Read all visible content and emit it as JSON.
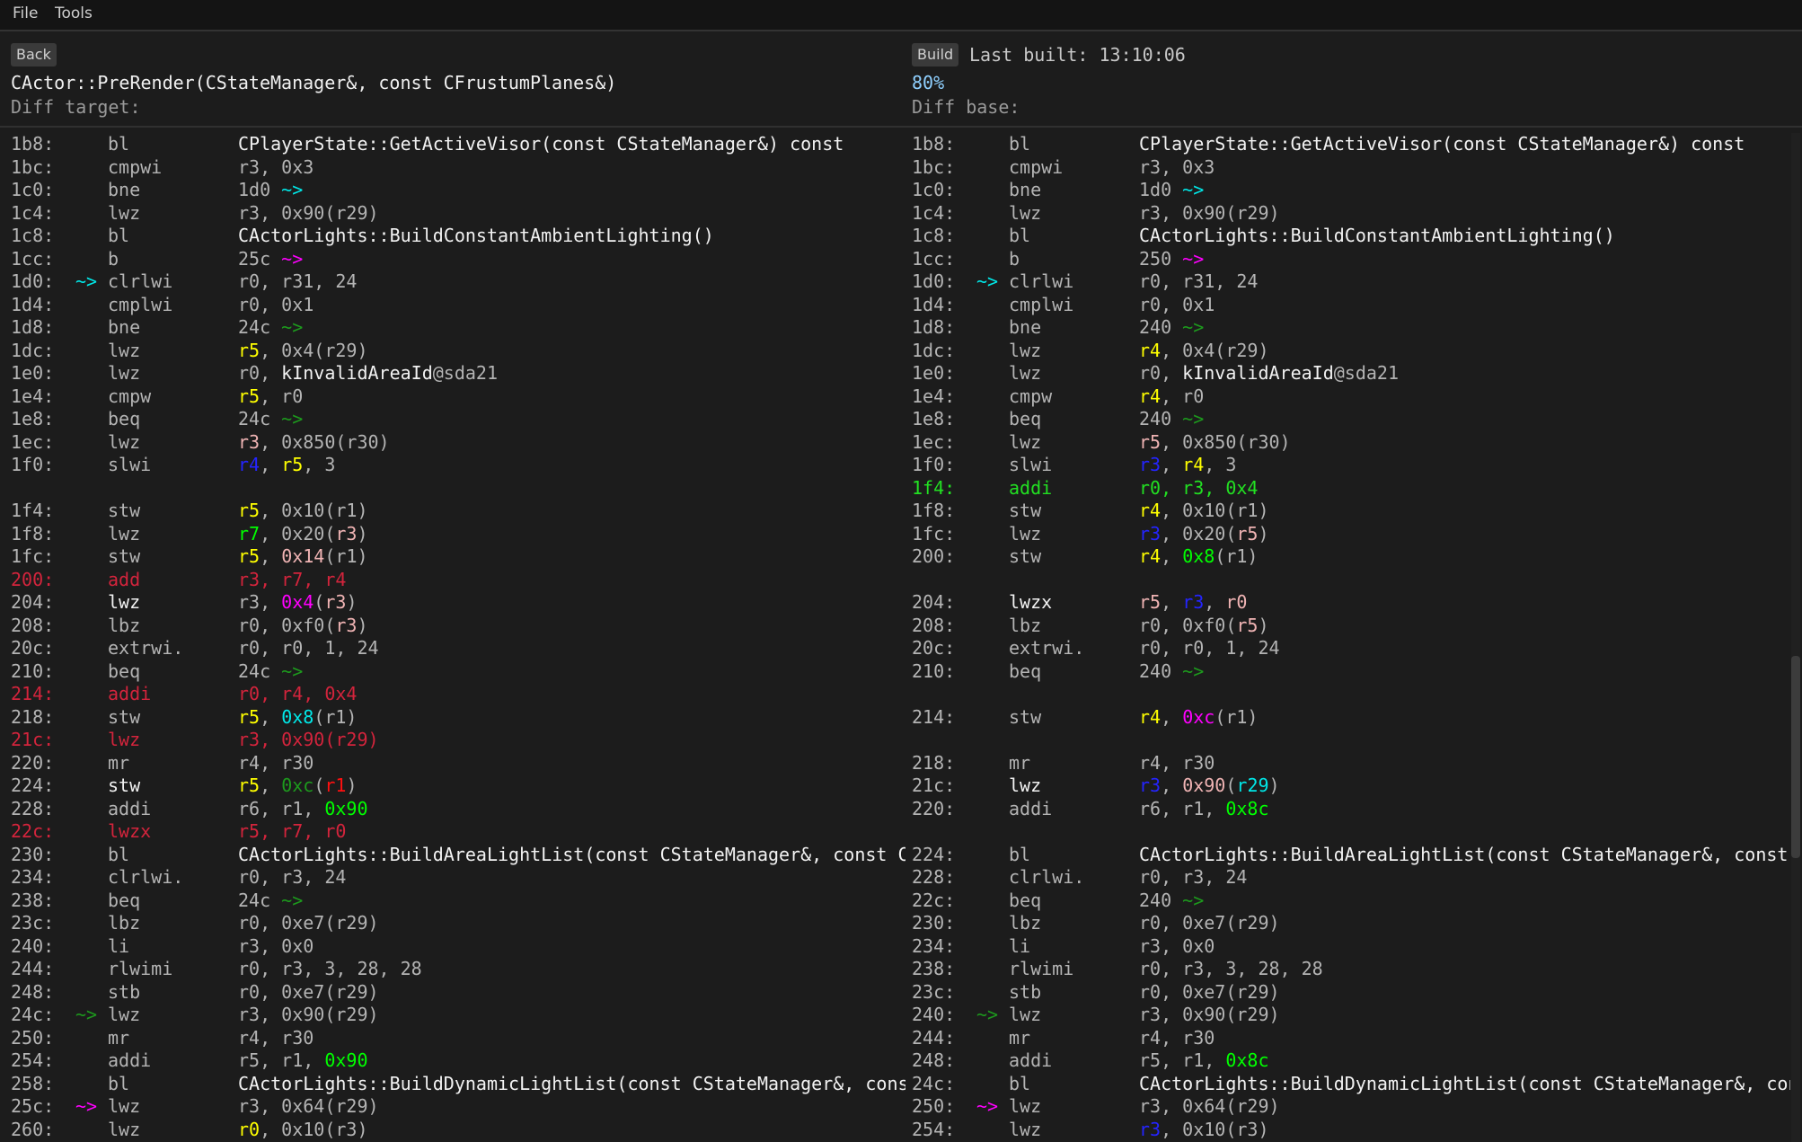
{
  "menu": {
    "file": "File",
    "tools": "Tools"
  },
  "toolbar": {
    "back_label": "Back",
    "build_label": "Build",
    "last_built": "Last built: 13:10:06"
  },
  "left": {
    "function_name": "CActor::PreRender(CStateManager&, const CFrustumPlanes&)",
    "label": "Diff target:"
  },
  "right": {
    "match_percent": "80%",
    "label": "Diff base:"
  },
  "colors": {
    "d": "#b4b4b4",
    "w": "#f2f2f2",
    "y": "#ffff00",
    "g": "#00ff00",
    "dg": "#1d9a1d",
    "c": "#00e8e8",
    "m": "#ff00ff",
    "b": "#2424ff",
    "p": "#f0b4b4",
    "r": "#d3243c",
    "R": "#ff1010",
    "ins": "#22e022",
    "background": "#1c1c1c"
  },
  "diff_left": [
    {
      "a": "1b8:",
      "m": "bl",
      "ops": [
        [
          "CPlayerState::GetActiveVisor(const CStateManager&) const",
          "w"
        ]
      ]
    },
    {
      "a": "1bc:",
      "m": "cmpwi",
      "ops": [
        "r3, 0x3"
      ]
    },
    {
      "a": "1c0:",
      "m": "bne",
      "ops": [
        "1d0 ",
        [
          "~>",
          "c"
        ]
      ]
    },
    {
      "a": "1c4:",
      "m": "lwz",
      "ops": [
        "r3, 0x90(r29)"
      ]
    },
    {
      "a": "1c8:",
      "m": "bl",
      "ops": [
        [
          "CActorLights::BuildConstantAmbientLighting()",
          "w"
        ]
      ]
    },
    {
      "a": "1cc:",
      "m": "b",
      "ops": [
        "25c ",
        [
          "~>",
          "m"
        ]
      ]
    },
    {
      "a": "1d0:",
      "ar": [
        "~>",
        "c"
      ],
      "m": "clrlwi",
      "ops": [
        "r0, r31, 24"
      ]
    },
    {
      "a": "1d4:",
      "m": "cmplwi",
      "ops": [
        "r0, 0x1"
      ]
    },
    {
      "a": "1d8:",
      "m": "bne",
      "ops": [
        "24c ",
        [
          "~>",
          "dg"
        ]
      ]
    },
    {
      "a": "1dc:",
      "m": "lwz",
      "ops": [
        [
          "r5",
          "y"
        ],
        ", 0x4(r29)"
      ]
    },
    {
      "a": "1e0:",
      "m": "lwz",
      "ops": [
        "r0, ",
        [
          "kInvalidAreaId",
          "w"
        ],
        "@sda21"
      ]
    },
    {
      "a": "1e4:",
      "m": "cmpw",
      "ops": [
        [
          "r5",
          "y"
        ],
        ", r0"
      ]
    },
    {
      "a": "1e8:",
      "m": "beq",
      "ops": [
        "24c ",
        [
          "~>",
          "dg"
        ]
      ]
    },
    {
      "a": "1ec:",
      "m": "lwz",
      "ops": [
        [
          "r3",
          "p"
        ],
        ", 0x850(r30)"
      ]
    },
    {
      "a": "1f0:",
      "m": "slwi",
      "ops": [
        [
          "r4",
          "b"
        ],
        ", ",
        [
          "r5",
          "y"
        ],
        ", 3"
      ]
    },
    {
      "blank": true
    },
    {
      "a": "1f4:",
      "m": "stw",
      "ops": [
        [
          "r5",
          "y"
        ],
        ", 0x10(r1)"
      ]
    },
    {
      "a": "1f8:",
      "m": "lwz",
      "ops": [
        [
          "r7",
          "g"
        ],
        ", 0x20(",
        [
          "r3",
          "p"
        ],
        ")"
      ]
    },
    {
      "a": "1fc:",
      "m": "stw",
      "ops": [
        [
          "r5",
          "y"
        ],
        ", ",
        [
          "0x14",
          "p"
        ],
        "(r1)"
      ]
    },
    {
      "a": "200:",
      "m": "add",
      "rc": "r",
      "ops": [
        "r3, r7, r4"
      ]
    },
    {
      "a": "204:",
      "m": "lwz",
      "mc": "w",
      "ops": [
        "r3, ",
        [
          "0x4",
          "m"
        ],
        "(",
        [
          "r3",
          "p"
        ],
        ")"
      ]
    },
    {
      "a": "208:",
      "m": "lbz",
      "ops": [
        "r0, 0xf0(",
        [
          "r3",
          "p"
        ],
        ")"
      ]
    },
    {
      "a": "20c:",
      "m": "extrwi.",
      "ops": [
        "r0, r0, 1, 24"
      ]
    },
    {
      "a": "210:",
      "m": "beq",
      "ops": [
        "24c ",
        [
          "~>",
          "dg"
        ]
      ]
    },
    {
      "a": "214:",
      "m": "addi",
      "rc": "r",
      "ops": [
        "r0, r4, 0x4"
      ]
    },
    {
      "a": "218:",
      "m": "stw",
      "ops": [
        [
          "r5",
          "y"
        ],
        ", ",
        [
          "0x8",
          "c"
        ],
        "(r1)"
      ]
    },
    {
      "a": "21c:",
      "m": "lwz",
      "rc": "r",
      "ops": [
        "r3, 0x90(r29)"
      ]
    },
    {
      "a": "220:",
      "m": "mr",
      "ops": [
        "r4, r30"
      ]
    },
    {
      "a": "224:",
      "m": "stw",
      "mc": "w",
      "ops": [
        [
          "r5",
          "y"
        ],
        ", ",
        [
          "0xc",
          "dg"
        ],
        "(",
        [
          "r1",
          "R"
        ],
        ")"
      ]
    },
    {
      "a": "228:",
      "m": "addi",
      "ops": [
        "r6, r1, ",
        [
          "0x90",
          "g"
        ]
      ]
    },
    {
      "a": "22c:",
      "m": "lwzx",
      "rc": "r",
      "ops": [
        "r5, r7, r0"
      ]
    },
    {
      "a": "230:",
      "m": "bl",
      "ops": [
        [
          "CActorLights::BuildAreaLightList(const CStateManager&, const CGameArea&, const zeus::CAABox&)",
          "w"
        ]
      ]
    },
    {
      "a": "234:",
      "m": "clrlwi.",
      "ops": [
        "r0, r3, 24"
      ]
    },
    {
      "a": "238:",
      "m": "beq",
      "ops": [
        "24c ",
        [
          "~>",
          "dg"
        ]
      ]
    },
    {
      "a": "23c:",
      "m": "lbz",
      "ops": [
        "r0, 0xe7(r29)"
      ]
    },
    {
      "a": "240:",
      "m": "li",
      "ops": [
        "r3, 0x0"
      ]
    },
    {
      "a": "244:",
      "m": "rlwimi",
      "ops": [
        "r0, r3, 3, 28, 28"
      ]
    },
    {
      "a": "248:",
      "m": "stb",
      "ops": [
        "r0, 0xe7(r29)"
      ]
    },
    {
      "a": "24c:",
      "ar": [
        "~>",
        "dg"
      ],
      "m": "lwz",
      "ops": [
        "r3, 0x90(r29)"
      ]
    },
    {
      "a": "250:",
      "m": "mr",
      "ops": [
        "r4, r30"
      ]
    },
    {
      "a": "254:",
      "m": "addi",
      "ops": [
        "r5, r1, ",
        [
          "0x90",
          "g"
        ]
      ]
    },
    {
      "a": "258:",
      "m": "bl",
      "ops": [
        [
          "CActorLights::BuildDynamicLightList(const CStateManager&, const zeus::CAABox&)",
          "w"
        ]
      ]
    },
    {
      "a": "25c:",
      "ar": [
        "~>",
        "m"
      ],
      "m": "lwz",
      "ops": [
        "r3, 0x64(r29)"
      ]
    },
    {
      "a": "260:",
      "m": "lwz",
      "ops": [
        [
          "r0",
          "y"
        ],
        ", 0x10(r3)"
      ]
    }
  ],
  "diff_right": [
    {
      "a": "1b8:",
      "m": "bl",
      "ops": [
        [
          "CPlayerState::GetActiveVisor(const CStateManager&) const",
          "w"
        ]
      ]
    },
    {
      "a": "1bc:",
      "m": "cmpwi",
      "ops": [
        "r3, 0x3"
      ]
    },
    {
      "a": "1c0:",
      "m": "bne",
      "ops": [
        "1d0 ",
        [
          "~>",
          "c"
        ]
      ]
    },
    {
      "a": "1c4:",
      "m": "lwz",
      "ops": [
        "r3, 0x90(r29)"
      ]
    },
    {
      "a": "1c8:",
      "m": "bl",
      "ops": [
        [
          "CActorLights::BuildConstantAmbientLighting()",
          "w"
        ]
      ]
    },
    {
      "a": "1cc:",
      "m": "b",
      "ops": [
        "250 ",
        [
          "~>",
          "m"
        ]
      ]
    },
    {
      "a": "1d0:",
      "ar": [
        "~>",
        "c"
      ],
      "m": "clrlwi",
      "ops": [
        "r0, r31, 24"
      ]
    },
    {
      "a": "1d4:",
      "m": "cmplwi",
      "ops": [
        "r0, 0x1"
      ]
    },
    {
      "a": "1d8:",
      "m": "bne",
      "ops": [
        "240 ",
        [
          "~>",
          "dg"
        ]
      ]
    },
    {
      "a": "1dc:",
      "m": "lwz",
      "ops": [
        [
          "r4",
          "y"
        ],
        ", 0x4(r29)"
      ]
    },
    {
      "a": "1e0:",
      "m": "lwz",
      "ops": [
        "r0, ",
        [
          "kInvalidAreaId",
          "w"
        ],
        "@sda21"
      ]
    },
    {
      "a": "1e4:",
      "m": "cmpw",
      "ops": [
        [
          "r4",
          "y"
        ],
        ", r0"
      ]
    },
    {
      "a": "1e8:",
      "m": "beq",
      "ops": [
        "240 ",
        [
          "~>",
          "dg"
        ]
      ]
    },
    {
      "a": "1ec:",
      "m": "lwz",
      "ops": [
        [
          "r5",
          "p"
        ],
        ", 0x850(r30)"
      ]
    },
    {
      "a": "1f0:",
      "m": "slwi",
      "ops": [
        [
          "r3",
          "b"
        ],
        ", ",
        [
          "r4",
          "y"
        ],
        ", 3"
      ]
    },
    {
      "a": "1f4:",
      "m": "addi",
      "rc": "ins",
      "ops": [
        "r0, r3, 0x4"
      ]
    },
    {
      "a": "1f8:",
      "m": "stw",
      "ops": [
        [
          "r4",
          "y"
        ],
        ", 0x10(r1)"
      ]
    },
    {
      "a": "1fc:",
      "m": "lwz",
      "ops": [
        [
          "r3",
          "b"
        ],
        ", 0x20(",
        [
          "r5",
          "p"
        ],
        ")"
      ]
    },
    {
      "a": "200:",
      "m": "stw",
      "ops": [
        [
          "r4",
          "y"
        ],
        ", ",
        [
          "0x8",
          "g"
        ],
        "(r1)"
      ]
    },
    {
      "blank": true
    },
    {
      "a": "204:",
      "m": "lwzx",
      "mc": "w",
      "ops": [
        [
          "r5",
          "p"
        ],
        ", ",
        [
          "r3",
          "b"
        ],
        ", ",
        [
          "r0",
          "p"
        ]
      ]
    },
    {
      "a": "208:",
      "m": "lbz",
      "ops": [
        "r0, 0xf0(",
        [
          "r5",
          "p"
        ],
        ")"
      ]
    },
    {
      "a": "20c:",
      "m": "extrwi.",
      "ops": [
        "r0, r0, 1, 24"
      ]
    },
    {
      "a": "210:",
      "m": "beq",
      "ops": [
        "240 ",
        [
          "~>",
          "dg"
        ]
      ]
    },
    {
      "blank": true
    },
    {
      "a": "214:",
      "m": "stw",
      "ops": [
        [
          "r4",
          "y"
        ],
        ", ",
        [
          "0xc",
          "m"
        ],
        "(r1)"
      ]
    },
    {
      "blank": true
    },
    {
      "a": "218:",
      "m": "mr",
      "ops": [
        "r4, r30"
      ]
    },
    {
      "a": "21c:",
      "m": "lwz",
      "mc": "w",
      "ops": [
        [
          "r3",
          "b"
        ],
        ", ",
        [
          "0x90",
          "p"
        ],
        "(",
        [
          "r29",
          "c"
        ],
        ")"
      ]
    },
    {
      "a": "220:",
      "m": "addi",
      "ops": [
        "r6, r1, ",
        [
          "0x8c",
          "g"
        ]
      ]
    },
    {
      "blank": true
    },
    {
      "a": "224:",
      "m": "bl",
      "ops": [
        [
          "CActorLights::BuildAreaLightList(const CStateManager&, const CGameArea&, const zeus::CAABox&)",
          "w"
        ]
      ]
    },
    {
      "a": "228:",
      "m": "clrlwi.",
      "ops": [
        "r0, r3, 24"
      ]
    },
    {
      "a": "22c:",
      "m": "beq",
      "ops": [
        "240 ",
        [
          "~>",
          "dg"
        ]
      ]
    },
    {
      "a": "230:",
      "m": "lbz",
      "ops": [
        "r0, 0xe7(r29)"
      ]
    },
    {
      "a": "234:",
      "m": "li",
      "ops": [
        "r3, 0x0"
      ]
    },
    {
      "a": "238:",
      "m": "rlwimi",
      "ops": [
        "r0, r3, 3, 28, 28"
      ]
    },
    {
      "a": "23c:",
      "m": "stb",
      "ops": [
        "r0, 0xe7(r29)"
      ]
    },
    {
      "a": "240:",
      "ar": [
        "~>",
        "dg"
      ],
      "m": "lwz",
      "ops": [
        "r3, 0x90(r29)"
      ]
    },
    {
      "a": "244:",
      "m": "mr",
      "ops": [
        "r4, r30"
      ]
    },
    {
      "a": "248:",
      "m": "addi",
      "ops": [
        "r5, r1, ",
        [
          "0x8c",
          "g"
        ]
      ]
    },
    {
      "a": "24c:",
      "m": "bl",
      "ops": [
        [
          "CActorLights::BuildDynamicLightList(const CStateManager&, const zeus::CAABox&)",
          "w"
        ]
      ]
    },
    {
      "a": "250:",
      "ar": [
        "~>",
        "m"
      ],
      "m": "lwz",
      "ops": [
        "r3, 0x64(r29)"
      ]
    },
    {
      "a": "254:",
      "m": "lwz",
      "ops": [
        [
          "r3",
          "b"
        ],
        ", 0x10(r3)"
      ]
    }
  ]
}
